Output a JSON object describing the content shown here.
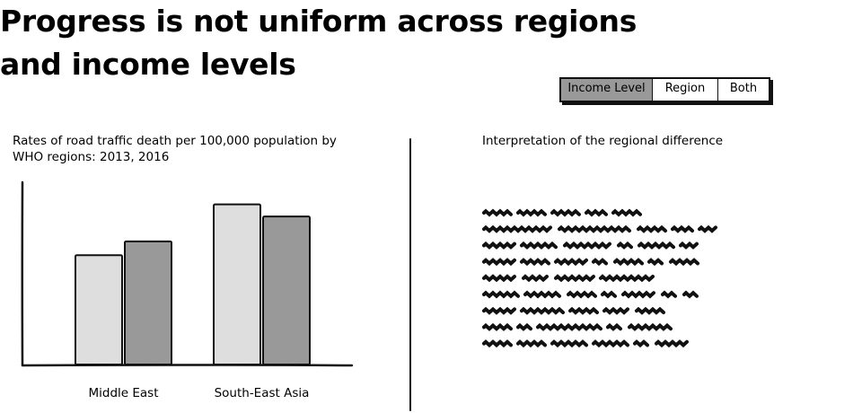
{
  "page": {
    "title": "Progress is not uniform across regions and income levels"
  },
  "toggle": {
    "options": [
      "Income Level",
      "Region",
      "Both"
    ],
    "selected": "Income Level"
  },
  "chart": {
    "title": "Rates of road traffic death per 100,000 population by WHO regions: 2013, 2016"
  },
  "chart_data": {
    "type": "bar",
    "title": "Rates of road traffic death per 100,000 population by WHO regions: 2013, 2016",
    "categories": [
      "Middle East",
      "South-East Asia"
    ],
    "series": [
      {
        "name": "2013",
        "values": [
          19.8,
          29.0
        ],
        "color": "#dedede"
      },
      {
        "name": "2016",
        "values": [
          22.3,
          26.8
        ],
        "color": "#999999"
      }
    ],
    "ylim": [
      0,
      33
    ],
    "grid": false
  },
  "interpretation": {
    "title": "Interpretation of the regional difference",
    "body_style": "scribbled placeholder text"
  },
  "colors": {
    "accent_dark": "#999999",
    "bar_light": "#dedede",
    "ink": "#111111"
  }
}
